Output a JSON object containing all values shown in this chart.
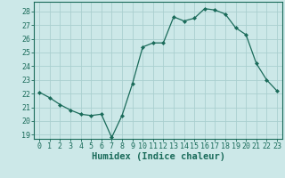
{
  "x": [
    0,
    1,
    2,
    3,
    4,
    5,
    6,
    7,
    8,
    9,
    10,
    11,
    12,
    13,
    14,
    15,
    16,
    17,
    18,
    19,
    20,
    21,
    22,
    23
  ],
  "y": [
    22.1,
    21.7,
    21.2,
    20.8,
    20.5,
    20.4,
    20.5,
    18.8,
    20.4,
    22.7,
    25.4,
    25.7,
    25.7,
    27.6,
    27.3,
    27.5,
    28.2,
    28.1,
    27.8,
    26.8,
    26.3,
    24.2,
    23.0,
    22.2
  ],
  "xlabel": "Humidex (Indice chaleur)",
  "xlim": [
    -0.5,
    23.5
  ],
  "ylim": [
    18.7,
    28.7
  ],
  "yticks": [
    19,
    20,
    21,
    22,
    23,
    24,
    25,
    26,
    27,
    28
  ],
  "xticks": [
    0,
    1,
    2,
    3,
    4,
    5,
    6,
    7,
    8,
    9,
    10,
    11,
    12,
    13,
    14,
    15,
    16,
    17,
    18,
    19,
    20,
    21,
    22,
    23
  ],
  "line_color": "#1a6b5a",
  "marker": "D",
  "marker_size": 2.0,
  "bg_color": "#cce8e8",
  "grid_color": "#aacfcf",
  "axis_color": "#1a6b5a",
  "tick_color": "#1a6b5a",
  "xlabel_fontsize": 7.5,
  "tick_fontsize": 6.0
}
